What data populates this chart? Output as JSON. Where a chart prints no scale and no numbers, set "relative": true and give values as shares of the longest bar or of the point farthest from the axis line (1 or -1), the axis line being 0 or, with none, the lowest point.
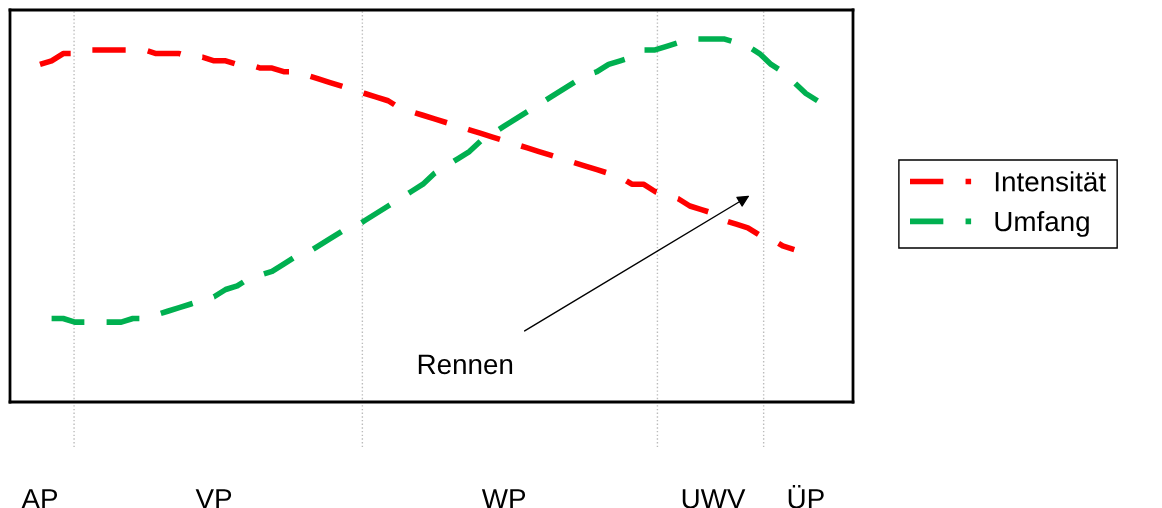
{
  "chart_data": {
    "type": "line",
    "relative": true,
    "line_style": "dashed",
    "marker": "none",
    "legend": "right",
    "categories": [
      "AP",
      null,
      null,
      null,
      null,
      null,
      null,
      null,
      null,
      null,
      null,
      null,
      null,
      null,
      null,
      "VP",
      null,
      null,
      null,
      null,
      null,
      null,
      null,
      null,
      null,
      null,
      null,
      null,
      null,
      null,
      null,
      null,
      null,
      null,
      null,
      null,
      null,
      null,
      null,
      null,
      "WP",
      null,
      null,
      null,
      null,
      null,
      null,
      null,
      null,
      null,
      null,
      null,
      null,
      null,
      null,
      null,
      null,
      null,
      "UWV",
      null,
      null,
      null,
      null,
      null,
      null,
      null,
      "ÜP",
      null
    ],
    "series": [
      {
        "name": "Intensität",
        "color": "#ff0000",
        "values": [
          0.93,
          0.94,
          0.96,
          0.96,
          0.97,
          0.97,
          0.97,
          0.97,
          0.97,
          0.97,
          0.96,
          0.96,
          0.96,
          0.95,
          0.95,
          0.94,
          0.94,
          0.93,
          0.93,
          0.92,
          0.92,
          0.91,
          0.91,
          0.9,
          0.89,
          0.88,
          0.87,
          0.86,
          0.85,
          0.84,
          0.83,
          0.81,
          0.8,
          0.79,
          0.78,
          0.77,
          0.76,
          0.75,
          0.74,
          0.73,
          0.72,
          0.71,
          0.7,
          0.69,
          0.68,
          0.67,
          0.66,
          0.65,
          0.64,
          0.63,
          0.62,
          0.6,
          0.6,
          0.58,
          0.57,
          0.56,
          0.54,
          0.53,
          0.52,
          0.5,
          0.49,
          0.48,
          0.46,
          0.45,
          0.43,
          0.42,
          null,
          null
        ]
      },
      {
        "name": "Umfang",
        "color": "#00b050",
        "values": [
          null,
          0.23,
          0.23,
          0.22,
          0.22,
          0.22,
          0.22,
          0.22,
          0.23,
          0.23,
          0.24,
          0.25,
          0.26,
          0.27,
          0.28,
          0.29,
          0.31,
          0.32,
          0.34,
          0.35,
          0.36,
          0.38,
          0.4,
          0.41,
          0.43,
          0.45,
          0.47,
          0.48,
          0.5,
          0.52,
          0.54,
          0.56,
          0.58,
          0.6,
          0.63,
          0.65,
          0.67,
          0.69,
          0.72,
          0.74,
          0.76,
          0.78,
          0.8,
          0.82,
          0.84,
          0.86,
          0.88,
          0.9,
          0.91,
          0.93,
          0.94,
          0.95,
          0.97,
          0.97,
          0.98,
          0.99,
          1.0,
          1.0,
          1.0,
          1.0,
          0.99,
          0.98,
          0.96,
          0.93,
          0.91,
          0.88,
          0.85,
          0.83
        ]
      }
    ],
    "annotations": [
      "Rennen"
    ]
  }
}
